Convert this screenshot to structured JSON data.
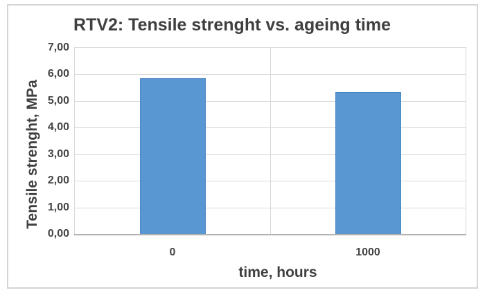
{
  "chart": {
    "title": "RTV2: Tensile strenght vs. ageing time",
    "y_axis_title": "Tensile strenght, MPa",
    "x_axis_title": "time, hours"
  },
  "chart_data": {
    "type": "bar",
    "title": "RTV2: Tensile strenght vs. ageing time",
    "categories": [
      "0",
      "1000"
    ],
    "values": [
      5.85,
      5.33
    ],
    "xlabel": "time, hours",
    "ylabel": "Tensile strenght, MPa",
    "ylim": [
      0,
      7
    ],
    "y_tick_step": 1,
    "y_ticks": [
      {
        "value": 0,
        "label": "0,00"
      },
      {
        "value": 1,
        "label": "1,00"
      },
      {
        "value": 2,
        "label": "2,00"
      },
      {
        "value": 3,
        "label": "3,00"
      },
      {
        "value": 4,
        "label": "4,00"
      },
      {
        "value": 5,
        "label": "5,00"
      },
      {
        "value": 6,
        "label": "6,00"
      },
      {
        "value": 7,
        "label": "7,00"
      }
    ],
    "grid": true,
    "legend": "none",
    "colors": {
      "bar_fill": "#5997d2",
      "bar_border": "#4c86c4",
      "gridline": "#d9d9d9",
      "axis_line": "#b3b3b3",
      "frame_border": "#d5d5d5",
      "text": "#3f3f3f"
    }
  }
}
